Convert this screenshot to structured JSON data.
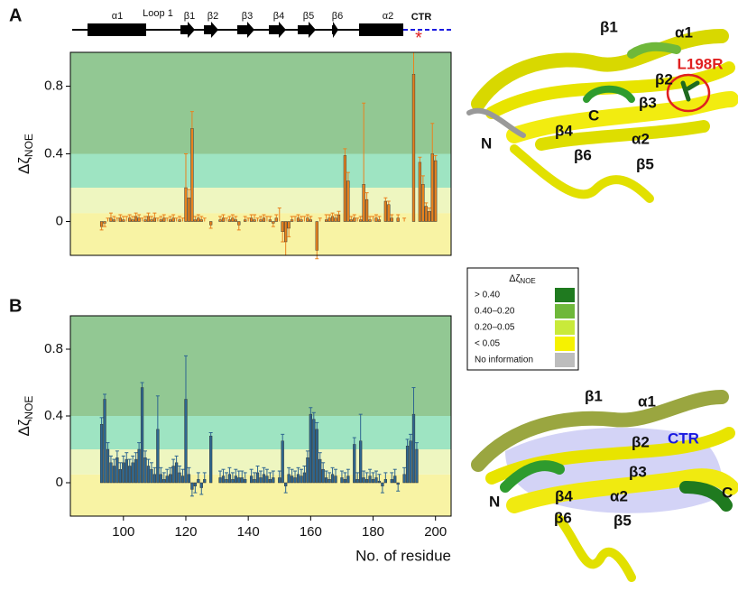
{
  "chart_data": [
    {
      "type": "bar",
      "panel": "A",
      "y_label": "Δζ",
      "y_label_sub": "NOE",
      "color": "#e8821e",
      "x": [
        93,
        94,
        95,
        96,
        97,
        98,
        99,
        100,
        101,
        102,
        103,
        104,
        105,
        106,
        107,
        108,
        109,
        110,
        111,
        112,
        113,
        114,
        115,
        116,
        117,
        118,
        119,
        120,
        121,
        122,
        123,
        124,
        125,
        126,
        128,
        131,
        132,
        133,
        134,
        135,
        136,
        137,
        139,
        140,
        141,
        142,
        143,
        144,
        145,
        146,
        147,
        148,
        149,
        150,
        151,
        152,
        153,
        154,
        155,
        156,
        157,
        158,
        159,
        160,
        162,
        163,
        165,
        166,
        167,
        168,
        169,
        171,
        172,
        173,
        174,
        175,
        176,
        177,
        178,
        179,
        180,
        181,
        182,
        184,
        185,
        186,
        188,
        190,
        193,
        195,
        196,
        197,
        198,
        199,
        200
      ],
      "values": [
        -0.03,
        -0.01,
        0.0,
        0.02,
        0.01,
        0.0,
        0.02,
        0.01,
        0.0,
        0.02,
        0.01,
        0.03,
        0.02,
        0.0,
        0.01,
        0.03,
        0.01,
        0.02,
        0.0,
        0.01,
        0.02,
        0.0,
        0.01,
        0.02,
        0.0,
        0.01,
        0.0,
        0.2,
        0.14,
        0.55,
        0.01,
        0.02,
        0.01,
        0.0,
        -0.02,
        0.01,
        0.02,
        0.0,
        0.01,
        0.02,
        0.01,
        -0.02,
        0.01,
        0.0,
        0.02,
        0.01,
        0.0,
        0.01,
        0.02,
        0.0,
        0.01,
        -0.01,
        0.02,
        0.0,
        -0.06,
        -0.12,
        -0.04,
        0.01,
        0.0,
        0.02,
        0.01,
        0.0,
        0.02,
        0.01,
        -0.17,
        0.0,
        0.01,
        0.02,
        0.03,
        0.02,
        0.04,
        0.39,
        0.24,
        0.01,
        0.02,
        0.0,
        0.01,
        0.22,
        0.13,
        0.01,
        0.0,
        0.02,
        0.01,
        0.12,
        0.1,
        0.02,
        0.02,
        0.0,
        0.87,
        0.35,
        0.22,
        0.09,
        0.06,
        0.4,
        0.36
      ],
      "errors": [
        0.02,
        0.02,
        0.02,
        0.03,
        0.02,
        0.02,
        0.02,
        0.02,
        0.03,
        0.02,
        0.02,
        0.02,
        0.02,
        0.02,
        0.02,
        0.02,
        0.02,
        0.03,
        0.02,
        0.02,
        0.02,
        0.02,
        0.02,
        0.02,
        0.02,
        0.02,
        0.02,
        0.2,
        0.05,
        0.1,
        0.02,
        0.02,
        0.02,
        0.02,
        0.02,
        0.02,
        0.02,
        0.02,
        0.02,
        0.02,
        0.02,
        0.03,
        0.02,
        0.02,
        0.02,
        0.03,
        0.02,
        0.02,
        0.02,
        0.03,
        0.02,
        0.02,
        0.02,
        0.08,
        0.06,
        0.08,
        0.05,
        0.02,
        0.03,
        0.02,
        0.02,
        0.03,
        0.02,
        0.02,
        0.05,
        0.02,
        0.03,
        0.02,
        0.02,
        0.02,
        0.02,
        0.04,
        0.05,
        0.02,
        0.02,
        0.02,
        0.02,
        0.48,
        0.04,
        0.02,
        0.03,
        0.02,
        0.02,
        0.02,
        0.02,
        0.02,
        0.02,
        0.02,
        0.13,
        0.03,
        0.05,
        0.02,
        0.02,
        0.18,
        0.03
      ],
      "xlim": [
        83,
        205
      ],
      "ylim": [
        -0.2,
        1.0
      ],
      "yticks": [
        0,
        0.4,
        0.8
      ],
      "bands": [
        {
          "from": -0.2,
          "to": 0.05,
          "color": "#f8f3a4"
        },
        {
          "from": 0.05,
          "to": 0.2,
          "color": "#eef6c0"
        },
        {
          "from": 0.2,
          "to": 0.4,
          "color": "#9ee4c2"
        },
        {
          "from": 0.4,
          "to": 1.0,
          "color": "#92c893"
        }
      ]
    },
    {
      "type": "bar",
      "panel": "B",
      "y_label": "Δζ",
      "y_label_sub": "NOE",
      "x_label": "No. of residue",
      "color": "#2e6690",
      "x": [
        93,
        94,
        95,
        96,
        97,
        98,
        99,
        100,
        101,
        102,
        103,
        104,
        105,
        106,
        107,
        108,
        109,
        110,
        111,
        112,
        113,
        114,
        115,
        116,
        117,
        118,
        119,
        120,
        121,
        122,
        123,
        124,
        125,
        126,
        128,
        131,
        132,
        133,
        134,
        135,
        136,
        137,
        138,
        139,
        141,
        142,
        143,
        144,
        145,
        146,
        147,
        148,
        150,
        151,
        152,
        153,
        154,
        155,
        156,
        157,
        158,
        159,
        160,
        161,
        162,
        163,
        164,
        165,
        166,
        167,
        168,
        170,
        171,
        172,
        174,
        175,
        176,
        177,
        178,
        179,
        180,
        181,
        182,
        183,
        184,
        186,
        187,
        188,
        190,
        191,
        192,
        193,
        194
      ],
      "values": [
        0.35,
        0.5,
        0.2,
        0.12,
        0.1,
        0.15,
        0.08,
        0.12,
        0.14,
        0.1,
        0.12,
        0.14,
        0.2,
        0.57,
        0.15,
        0.1,
        0.08,
        0.05,
        0.32,
        0.05,
        0.02,
        0.04,
        0.05,
        0.1,
        0.12,
        0.06,
        0.04,
        0.5,
        0.05,
        -0.04,
        -0.02,
        0.02,
        -0.03,
        0.02,
        0.28,
        0.03,
        0.04,
        0.02,
        0.05,
        0.02,
        0.04,
        0.03,
        0.03,
        0.02,
        0.04,
        0.02,
        0.06,
        0.03,
        0.05,
        0.04,
        0.02,
        0.03,
        0.03,
        0.25,
        -0.02,
        0.05,
        0.04,
        0.03,
        0.05,
        0.04,
        0.06,
        0.15,
        0.41,
        0.38,
        0.32,
        0.14,
        0.08,
        0.03,
        0.02,
        0.05,
        0.04,
        0.03,
        0.02,
        0.04,
        0.23,
        0.02,
        0.25,
        0.03,
        0.02,
        0.04,
        0.02,
        0.03,
        0.01,
        -0.02,
        0.02,
        0.02,
        0.04,
        -0.01,
        0.05,
        0.22,
        0.25,
        0.41,
        0.2
      ],
      "errors": [
        0.04,
        0.03,
        0.04,
        0.04,
        0.04,
        0.04,
        0.04,
        0.04,
        0.04,
        0.04,
        0.04,
        0.04,
        0.04,
        0.03,
        0.04,
        0.04,
        0.04,
        0.04,
        0.2,
        0.04,
        0.04,
        0.04,
        0.04,
        0.04,
        0.04,
        0.04,
        0.04,
        0.26,
        0.04,
        0.04,
        0.04,
        0.04,
        0.04,
        0.04,
        0.02,
        0.04,
        0.04,
        0.04,
        0.04,
        0.04,
        0.04,
        0.04,
        0.04,
        0.04,
        0.04,
        0.04,
        0.04,
        0.04,
        0.04,
        0.04,
        0.04,
        0.04,
        0.04,
        0.04,
        0.04,
        0.04,
        0.04,
        0.04,
        0.04,
        0.04,
        0.04,
        0.04,
        0.04,
        0.04,
        0.04,
        0.04,
        0.04,
        0.04,
        0.04,
        0.04,
        0.04,
        0.04,
        0.04,
        0.04,
        0.04,
        0.04,
        0.16,
        0.04,
        0.04,
        0.04,
        0.04,
        0.04,
        0.04,
        0.04,
        0.04,
        0.04,
        0.04,
        0.04,
        0.04,
        0.04,
        0.04,
        0.16,
        0.04
      ],
      "xlim": [
        83,
        205
      ],
      "ylim": [
        -0.2,
        1.0
      ],
      "yticks": [
        0,
        0.4,
        0.8
      ],
      "xticks": [
        100,
        120,
        140,
        160,
        180,
        200
      ],
      "bands": [
        {
          "from": -0.2,
          "to": 0.05,
          "color": "#f8f3a4"
        },
        {
          "from": 0.05,
          "to": 0.2,
          "color": "#eef6c0"
        },
        {
          "from": 0.2,
          "to": 0.4,
          "color": "#9ee4c2"
        },
        {
          "from": 0.4,
          "to": 1.0,
          "color": "#92c893"
        }
      ]
    }
  ],
  "topology": {
    "helix1": "α1",
    "loop": "Loop 1",
    "b1": "β1",
    "b2": "β2",
    "b3": "β3",
    "b4": "β4",
    "b5": "β5",
    "b6": "β6",
    "helix2": "α2",
    "ctr": "CTR",
    "mark": "*"
  },
  "structure_a": {
    "b1": "β1",
    "a1": "α1",
    "b2": "β2",
    "mutation": "L198R",
    "b3": "β3",
    "c": "C",
    "n": "N",
    "b4": "β4",
    "a2": "α2",
    "b6": "β6",
    "b5": "β5"
  },
  "structure_b": {
    "b1": "β1",
    "a1": "α1",
    "b2": "β2",
    "ctr": "CTR",
    "b3": "β3",
    "c": "C",
    "n": "N",
    "b4": "β4",
    "a2": "α2",
    "b6": "β6",
    "b5": "β5"
  },
  "legend_box": {
    "title": "Δζ",
    "title_sub": "NOE",
    "items": [
      {
        "label": "> 0.40",
        "color": "#1f7a1f"
      },
      {
        "label": "0.40–0.20",
        "color": "#6fb83a"
      },
      {
        "label": "0.20–0.05",
        "color": "#c9ea3a"
      },
      {
        "label": "< 0.05",
        "color": "#f6f200"
      },
      {
        "label": "No information",
        "color": "#bdbdbd"
      }
    ]
  }
}
